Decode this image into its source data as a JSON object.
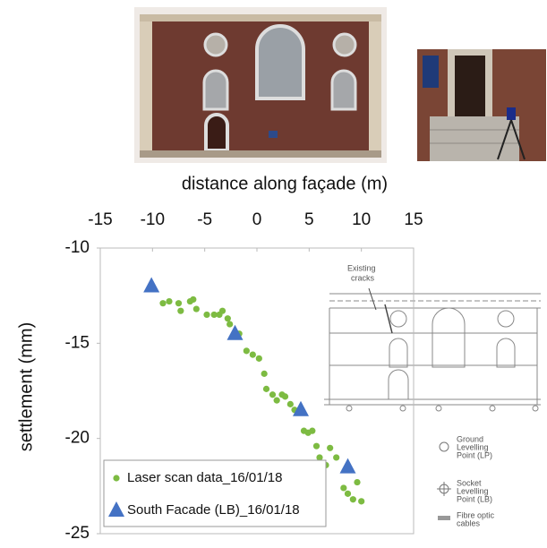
{
  "chart_data": {
    "type": "scatter",
    "xlabel": "distance along façade (m)",
    "ylabel": "settlement (mm)",
    "xlim": [
      -15,
      15
    ],
    "xticks": [
      -15,
      -10,
      -5,
      0,
      5,
      10,
      15
    ],
    "ylim": [
      -25,
      -10
    ],
    "yticks": [
      -10,
      -15,
      -20,
      -25
    ],
    "legend": "lower left",
    "series": [
      {
        "name": "Laser scan data_16/01/18",
        "color": "#7dbb42",
        "marker": "circle",
        "x": [
          -9.0,
          -8.4,
          -7.5,
          -7.3,
          -6.4,
          -6.1,
          -5.8,
          -4.8,
          -4.1,
          -3.6,
          -3.3,
          -2.8,
          -2.6,
          -1.7,
          -1.0,
          -0.4,
          0.2,
          0.7,
          0.9,
          1.5,
          1.9,
          2.4,
          2.7,
          3.2,
          3.6,
          4.5,
          4.9,
          5.3,
          5.7,
          6.0,
          6.6,
          7.0,
          7.6,
          8.3,
          8.7,
          9.2,
          9.6,
          10.0
        ],
        "values": [
          -12.9,
          -12.8,
          -12.9,
          -13.3,
          -12.8,
          -12.7,
          -13.2,
          -13.5,
          -13.5,
          -13.5,
          -13.3,
          -13.7,
          -14.0,
          -14.5,
          -15.4,
          -15.6,
          -15.8,
          -16.6,
          -17.4,
          -17.7,
          -18.0,
          -17.7,
          -17.8,
          -18.2,
          -18.5,
          -19.6,
          -19.7,
          -19.6,
          -20.4,
          -21.0,
          -21.4,
          -20.5,
          -21.0,
          -22.6,
          -22.9,
          -23.2,
          -22.3,
          -23.3
        ]
      },
      {
        "name": "South Facade (LB)_16/01/18",
        "color": "#4472c4",
        "marker": "triangle",
        "x": [
          -10.1,
          -2.1,
          4.2,
          8.7
        ],
        "values": [
          -12.0,
          -14.5,
          -18.5,
          -21.5
        ]
      }
    ]
  },
  "inset": {
    "crack_label": [
      "Existing",
      "cracks"
    ],
    "legend": [
      [
        "Ground",
        "Levelling",
        "Point (LP)"
      ],
      [
        "Socket",
        "Levelling",
        "Point (LB)"
      ],
      [
        "Fibre optic",
        "cables"
      ]
    ]
  }
}
